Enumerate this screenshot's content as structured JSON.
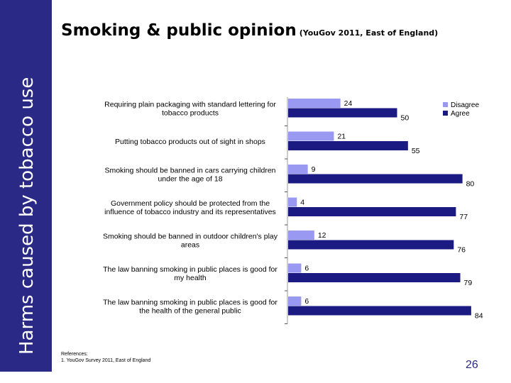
{
  "sidebar": {
    "label": "Harms caused by tobacco use"
  },
  "header": {
    "title": "Smoking & public opinion",
    "subtitle": "(YouGov 2011, East of England)"
  },
  "footer": {
    "references_heading": "References:",
    "reference_1": "1. YouGov Survey 2011, East of England",
    "page_number": "26"
  },
  "colors": {
    "sidebar": "#2a2a86",
    "disagree": "#9999f2",
    "agree": "#1a1a82"
  },
  "chart_data": {
    "type": "bar",
    "orientation": "horizontal",
    "categories": [
      [
        "Requiring plain packaging with standard lettering for",
        "tobacco products"
      ],
      [
        "Putting tobacco products out of sight in shops"
      ],
      [
        "Smoking should be banned in cars carrying children",
        "under the age of 18"
      ],
      [
        "Government policy should be protected from the",
        "influence of tobacco industry and its representatives"
      ],
      [
        "Smoking should be banned in outdoor children's play",
        "areas"
      ],
      [
        "The law banning smoking in public places is good for",
        "my health"
      ],
      [
        "The law banning smoking in public places is good for",
        "the health of the general public"
      ]
    ],
    "series": [
      {
        "name": "Disagree",
        "values": [
          24,
          21,
          9,
          4,
          12,
          6,
          6
        ]
      },
      {
        "name": "Agree",
        "values": [
          50,
          55,
          80,
          77,
          76,
          79,
          84
        ]
      }
    ],
    "xlim": [
      0,
      100
    ],
    "legend_position": "top-right",
    "grid": false
  }
}
